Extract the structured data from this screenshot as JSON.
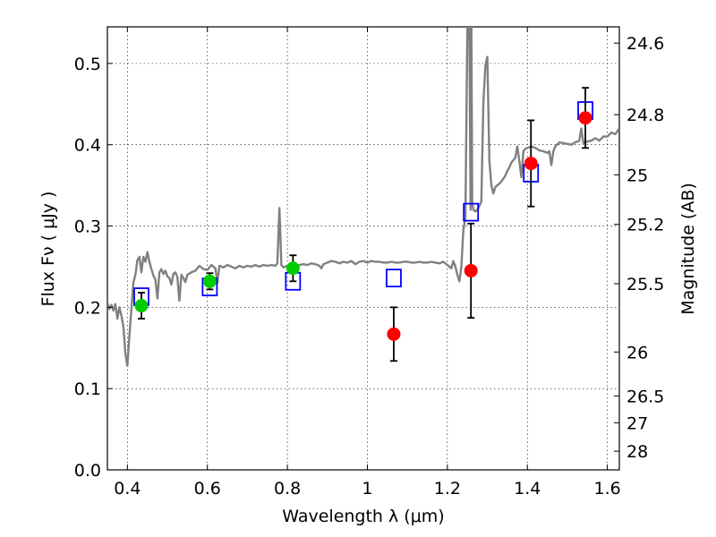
{
  "chart_data": {
    "type": "scatter",
    "xlabel": "Wavelength  λ (μm)",
    "ylabel": "Flux  Fν  ( μJy )",
    "y2label": "Magnitude (AB)",
    "xlim": [
      0.35,
      1.63
    ],
    "ylim": [
      0.0,
      0.545
    ],
    "grid": true,
    "x_ticks": [
      {
        "value": 0.4,
        "label": "0.4"
      },
      {
        "value": 0.6,
        "label": "0.6"
      },
      {
        "value": 0.8,
        "label": "0.8"
      },
      {
        "value": 1.0,
        "label": "1"
      },
      {
        "value": 1.2,
        "label": "1.2"
      },
      {
        "value": 1.4,
        "label": "1.4"
      },
      {
        "value": 1.6,
        "label": "1.6"
      }
    ],
    "y_ticks": [
      {
        "value": 0.0,
        "label": "0.0"
      },
      {
        "value": 0.1,
        "label": "0.1"
      },
      {
        "value": 0.2,
        "label": "0.2"
      },
      {
        "value": 0.3,
        "label": "0.3"
      },
      {
        "value": 0.4,
        "label": "0.4"
      },
      {
        "value": 0.5,
        "label": "0.5"
      }
    ],
    "y2_ticks": [
      {
        "flux": 0.525,
        "label": "24.6"
      },
      {
        "flux": 0.437,
        "label": "24.8"
      },
      {
        "flux": 0.363,
        "label": "25"
      },
      {
        "flux": 0.302,
        "label": "25.2"
      },
      {
        "flux": 0.229,
        "label": "25.5"
      },
      {
        "flux": 0.145,
        "label": "26"
      },
      {
        "flux": 0.091,
        "label": "26.5"
      },
      {
        "flux": 0.058,
        "label": "27"
      },
      {
        "flux": 0.023,
        "label": "28"
      }
    ],
    "model_spectrum": {
      "color": "#808080",
      "points": [
        [
          0.35,
          0.205
        ],
        [
          0.355,
          0.198
        ],
        [
          0.36,
          0.203
        ],
        [
          0.365,
          0.196
        ],
        [
          0.37,
          0.204
        ],
        [
          0.375,
          0.186
        ],
        [
          0.38,
          0.2
        ],
        [
          0.385,
          0.19
        ],
        [
          0.39,
          0.176
        ],
        [
          0.395,
          0.143
        ],
        [
          0.4,
          0.128
        ],
        [
          0.405,
          0.165
        ],
        [
          0.41,
          0.198
        ],
        [
          0.415,
          0.23
        ],
        [
          0.42,
          0.24
        ],
        [
          0.425,
          0.258
        ],
        [
          0.43,
          0.262
        ],
        [
          0.435,
          0.243
        ],
        [
          0.44,
          0.262
        ],
        [
          0.445,
          0.256
        ],
        [
          0.45,
          0.268
        ],
        [
          0.455,
          0.256
        ],
        [
          0.46,
          0.247
        ],
        [
          0.465,
          0.239
        ],
        [
          0.47,
          0.234
        ],
        [
          0.475,
          0.211
        ],
        [
          0.48,
          0.243
        ],
        [
          0.485,
          0.247
        ],
        [
          0.49,
          0.241
        ],
        [
          0.495,
          0.245
        ],
        [
          0.5,
          0.238
        ],
        [
          0.505,
          0.236
        ],
        [
          0.51,
          0.228
        ],
        [
          0.515,
          0.241
        ],
        [
          0.52,
          0.243
        ],
        [
          0.525,
          0.237
        ],
        [
          0.53,
          0.208
        ],
        [
          0.535,
          0.24
        ],
        [
          0.54,
          0.236
        ],
        [
          0.545,
          0.231
        ],
        [
          0.55,
          0.24
        ],
        [
          0.56,
          0.243
        ],
        [
          0.57,
          0.245
        ],
        [
          0.58,
          0.251
        ],
        [
          0.59,
          0.247
        ],
        [
          0.6,
          0.246
        ],
        [
          0.61,
          0.252
        ],
        [
          0.62,
          0.248
        ],
        [
          0.625,
          0.23
        ],
        [
          0.63,
          0.251
        ],
        [
          0.64,
          0.249
        ],
        [
          0.65,
          0.252
        ],
        [
          0.66,
          0.25
        ],
        [
          0.67,
          0.248
        ],
        [
          0.68,
          0.251
        ],
        [
          0.69,
          0.249
        ],
        [
          0.7,
          0.251
        ],
        [
          0.71,
          0.25
        ],
        [
          0.72,
          0.252
        ],
        [
          0.73,
          0.25
        ],
        [
          0.74,
          0.252
        ],
        [
          0.75,
          0.251
        ],
        [
          0.76,
          0.252
        ],
        [
          0.77,
          0.251
        ],
        [
          0.775,
          0.254
        ],
        [
          0.78,
          0.322
        ],
        [
          0.785,
          0.252
        ],
        [
          0.79,
          0.249
        ],
        [
          0.8,
          0.251
        ],
        [
          0.81,
          0.252
        ],
        [
          0.82,
          0.25
        ],
        [
          0.83,
          0.252
        ],
        [
          0.84,
          0.253
        ],
        [
          0.85,
          0.252
        ],
        [
          0.86,
          0.254
        ],
        [
          0.87,
          0.253
        ],
        [
          0.88,
          0.251
        ],
        [
          0.885,
          0.248
        ],
        [
          0.89,
          0.253
        ],
        [
          0.9,
          0.255
        ],
        [
          0.91,
          0.257
        ],
        [
          0.92,
          0.256
        ],
        [
          0.93,
          0.254
        ],
        [
          0.94,
          0.256
        ],
        [
          0.95,
          0.255
        ],
        [
          0.96,
          0.257
        ],
        [
          0.97,
          0.253
        ],
        [
          0.98,
          0.256
        ],
        [
          0.99,
          0.257
        ],
        [
          1.0,
          0.255
        ],
        [
          1.01,
          0.257
        ],
        [
          1.02,
          0.256
        ],
        [
          1.03,
          0.256
        ],
        [
          1.04,
          0.255
        ],
        [
          1.05,
          0.255
        ],
        [
          1.06,
          0.256
        ],
        [
          1.07,
          0.255
        ],
        [
          1.08,
          0.255
        ],
        [
          1.09,
          0.256
        ],
        [
          1.1,
          0.256
        ],
        [
          1.11,
          0.255
        ],
        [
          1.12,
          0.255
        ],
        [
          1.13,
          0.256
        ],
        [
          1.14,
          0.255
        ],
        [
          1.15,
          0.255
        ],
        [
          1.16,
          0.256
        ],
        [
          1.17,
          0.255
        ],
        [
          1.18,
          0.254
        ],
        [
          1.19,
          0.256
        ],
        [
          1.2,
          0.252
        ],
        [
          1.21,
          0.248
        ],
        [
          1.215,
          0.257
        ],
        [
          1.22,
          0.25
        ],
        [
          1.225,
          0.24
        ],
        [
          1.23,
          0.232
        ],
        [
          1.235,
          0.25
        ],
        [
          1.24,
          0.295
        ],
        [
          1.245,
          0.31
        ],
        [
          1.25,
          0.545
        ],
        [
          1.255,
          0.545
        ],
        [
          1.258,
          0.32
        ],
        [
          1.26,
          0.545
        ],
        [
          1.262,
          0.33
        ],
        [
          1.265,
          0.32
        ],
        [
          1.27,
          0.318
        ],
        [
          1.275,
          0.32
        ],
        [
          1.28,
          0.325
        ],
        [
          1.285,
          0.33
        ],
        [
          1.29,
          0.452
        ],
        [
          1.295,
          0.497
        ],
        [
          1.3,
          0.508
        ],
        [
          1.305,
          0.38
        ],
        [
          1.31,
          0.35
        ],
        [
          1.315,
          0.34
        ],
        [
          1.32,
          0.348
        ],
        [
          1.325,
          0.35
        ],
        [
          1.33,
          0.352
        ],
        [
          1.335,
          0.355
        ],
        [
          1.34,
          0.358
        ],
        [
          1.345,
          0.362
        ],
        [
          1.35,
          0.368
        ],
        [
          1.355,
          0.372
        ],
        [
          1.36,
          0.378
        ],
        [
          1.365,
          0.381
        ],
        [
          1.37,
          0.384
        ],
        [
          1.375,
          0.398
        ],
        [
          1.38,
          0.38
        ],
        [
          1.385,
          0.36
        ],
        [
          1.39,
          0.392
        ],
        [
          1.395,
          0.395
        ],
        [
          1.4,
          0.396
        ],
        [
          1.41,
          0.398
        ],
        [
          1.42,
          0.396
        ],
        [
          1.43,
          0.393
        ],
        [
          1.44,
          0.392
        ],
        [
          1.45,
          0.39
        ],
        [
          1.455,
          0.392
        ],
        [
          1.46,
          0.375
        ],
        [
          1.465,
          0.392
        ],
        [
          1.47,
          0.398
        ],
        [
          1.48,
          0.403
        ],
        [
          1.49,
          0.402
        ],
        [
          1.5,
          0.401
        ],
        [
          1.51,
          0.4
        ],
        [
          1.52,
          0.403
        ],
        [
          1.53,
          0.405
        ],
        [
          1.535,
          0.42
        ],
        [
          1.54,
          0.402
        ],
        [
          1.55,
          0.404
        ],
        [
          1.56,
          0.405
        ],
        [
          1.57,
          0.408
        ],
        [
          1.58,
          0.405
        ],
        [
          1.59,
          0.41
        ],
        [
          1.6,
          0.41
        ],
        [
          1.61,
          0.415
        ],
        [
          1.62,
          0.413
        ],
        [
          1.63,
          0.42
        ]
      ]
    },
    "series": [
      {
        "marker": "circle",
        "color": "#00cc00",
        "points": [
          {
            "x": 0.435,
            "y": 0.202,
            "yerr": 0.016
          },
          {
            "x": 0.606,
            "y": 0.232,
            "yerr": 0.01
          },
          {
            "x": 0.814,
            "y": 0.248,
            "yerr": 0.016
          }
        ]
      },
      {
        "marker": "circle",
        "color": "#ff0000",
        "points": [
          {
            "x": 1.066,
            "y": 0.167,
            "yerr": 0.033
          },
          {
            "x": 1.259,
            "y": 0.245,
            "yerr": 0.058
          },
          {
            "x": 1.409,
            "y": 0.377,
            "yerr": 0.053
          },
          {
            "x": 1.545,
            "y": 0.433,
            "yerr": 0.037
          }
        ]
      },
      {
        "marker": "open-square",
        "color": "#0000ff",
        "points": [
          {
            "x": 0.435,
            "y": 0.213
          },
          {
            "x": 0.606,
            "y": 0.225
          },
          {
            "x": 0.814,
            "y": 0.232
          },
          {
            "x": 1.066,
            "y": 0.236
          },
          {
            "x": 1.259,
            "y": 0.317
          },
          {
            "x": 1.409,
            "y": 0.365
          },
          {
            "x": 1.545,
            "y": 0.442
          }
        ]
      }
    ]
  }
}
